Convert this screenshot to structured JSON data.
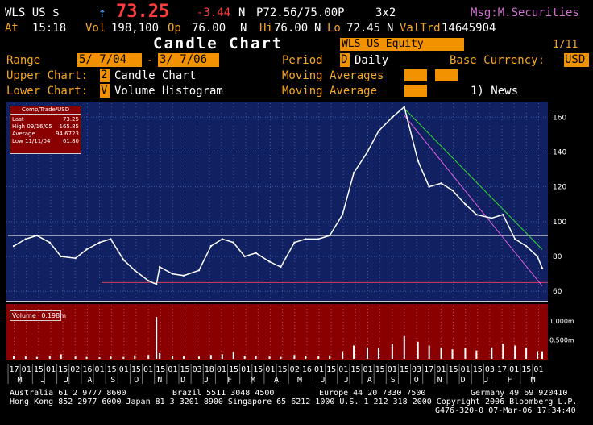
{
  "header": {
    "ticker": "WLS US $",
    "arrow": "⇡",
    "price": "73.25",
    "change": "-3.44",
    "n1": "N",
    "bid_ask": "P72.56/75.00P",
    "size": "3x2",
    "msg": "Msg:M.Securities",
    "at_label": "At",
    "time": "15:18",
    "vol_label": "Vol",
    "vol": "198,100",
    "op_label": "Op",
    "open": "76.00",
    "n2": "N",
    "hi_label": "Hi",
    "high": "76.00",
    "n3": "N",
    "lo_label": "Lo",
    "low": "72.45",
    "n4": "N",
    "valtrd_label": "ValTrd",
    "valtrd": "14645904"
  },
  "title": {
    "text": "Candle Chart",
    "security": "WLS  US Equity",
    "page": "1/11"
  },
  "settings": {
    "range_label": "Range",
    "range_start": "5/ 7/04",
    "range_dash": "-",
    "range_end": "3/ 7/06",
    "period_label": "Period",
    "period_code": "D",
    "period_value": "Daily",
    "currency_label": "Base Currency:",
    "currency_value": "USD",
    "upper_label": "Upper Chart:",
    "upper_code": "2",
    "upper_value": "Candle Chart",
    "ma1_label": "Moving Averages",
    "lower_label": "Lower Chart:",
    "lower_code": "V",
    "lower_value": "Volume Histogram",
    "ma2_label": "Moving Average",
    "news_label": "1) News"
  },
  "info_box": {
    "title": "Comp/Trade/USD",
    "rows": [
      {
        "label": "Last",
        "value": "73.25"
      },
      {
        "label": "High  09/16/05",
        "value": "165.85"
      },
      {
        "label": "Average",
        "value": "94.6723"
      },
      {
        "label": "Low   11/11/04",
        "value": "61.80"
      }
    ]
  },
  "volume_box": {
    "label": "Volume",
    "value": "0.198m"
  },
  "chart_data": {
    "type": "line",
    "title": "Candle Chart",
    "series": [
      {
        "name": "WLS US Equity",
        "x": [
          "2004-05-17",
          "2004-06-01",
          "2004-06-15",
          "2004-07-01",
          "2004-07-15",
          "2004-08-02",
          "2004-08-16",
          "2004-09-01",
          "2004-09-15",
          "2004-10-01",
          "2004-10-15",
          "2004-11-01",
          "2004-11-11",
          "2004-11-15",
          "2004-12-01",
          "2004-12-15",
          "2005-01-03",
          "2005-01-18",
          "2005-02-01",
          "2005-02-15",
          "2005-03-01",
          "2005-03-15",
          "2005-04-01",
          "2005-04-15",
          "2005-05-02",
          "2005-05-16",
          "2005-06-01",
          "2005-06-15",
          "2005-07-01",
          "2005-07-15",
          "2005-08-01",
          "2005-08-15",
          "2005-09-01",
          "2005-09-16",
          "2005-10-03",
          "2005-10-17",
          "2005-11-01",
          "2005-11-15",
          "2005-12-01",
          "2005-12-15",
          "2006-01-03",
          "2006-01-17",
          "2006-02-01",
          "2006-02-15",
          "2006-03-01",
          "2006-03-07"
        ],
        "y": [
          86,
          90,
          92,
          88,
          80,
          79,
          84,
          88,
          90,
          78,
          72,
          66,
          64,
          74,
          70,
          69,
          72,
          86,
          90,
          88,
          80,
          82,
          77,
          74,
          88,
          90,
          90,
          92,
          104,
          128,
          140,
          152,
          160,
          165.85,
          135,
          120,
          122,
          118,
          110,
          104,
          102,
          104,
          90,
          86,
          80,
          73.25
        ]
      }
    ],
    "volume": {
      "x": [
        "2004-05-17",
        "2004-06-01",
        "2004-06-15",
        "2004-07-01",
        "2004-07-15",
        "2004-08-02",
        "2004-08-16",
        "2004-09-01",
        "2004-09-15",
        "2004-10-01",
        "2004-10-15",
        "2004-11-01",
        "2004-11-11",
        "2004-11-15",
        "2004-12-01",
        "2004-12-15",
        "2005-01-03",
        "2005-01-18",
        "2005-02-01",
        "2005-02-15",
        "2005-03-01",
        "2005-03-15",
        "2005-04-01",
        "2005-04-15",
        "2005-05-02",
        "2005-05-16",
        "2005-06-01",
        "2005-06-15",
        "2005-07-01",
        "2005-07-15",
        "2005-08-01",
        "2005-08-15",
        "2005-09-01",
        "2005-09-16",
        "2005-10-03",
        "2005-10-17",
        "2005-11-01",
        "2005-11-15",
        "2005-12-01",
        "2005-12-15",
        "2006-01-03",
        "2006-01-17",
        "2006-02-01",
        "2006-02-15",
        "2006-03-01",
        "2006-03-07"
      ],
      "values": [
        0.08,
        0.06,
        0.05,
        0.07,
        0.12,
        0.06,
        0.05,
        0.04,
        0.06,
        0.05,
        0.09,
        0.1,
        1.1,
        0.15,
        0.08,
        0.07,
        0.06,
        0.1,
        0.12,
        0.18,
        0.08,
        0.07,
        0.06,
        0.05,
        0.1,
        0.08,
        0.07,
        0.09,
        0.2,
        0.35,
        0.3,
        0.28,
        0.4,
        0.6,
        0.45,
        0.35,
        0.3,
        0.25,
        0.28,
        0.22,
        0.3,
        0.4,
        0.35,
        0.3,
        0.2,
        0.198
      ],
      "ylim": [
        0,
        1.4
      ]
    },
    "ylim": [
      55,
      168
    ],
    "yticks": [
      "160",
      "140",
      "120",
      "100",
      "80",
      "60"
    ],
    "vol_ticks": [
      "1.000m",
      "0.500m"
    ],
    "hlines": [
      92,
      65
    ],
    "trendlines": [
      {
        "color": "#2fdf2f",
        "from": [
          "2005-09-16",
          165
        ],
        "to": [
          "2006-03-07",
          84
        ]
      },
      {
        "color": "#e060e0",
        "from": [
          "2005-09-16",
          161
        ],
        "to": [
          "2006-03-07",
          63
        ]
      }
    ],
    "x_day_ticks": [
      "17",
      "01",
      "15",
      "01",
      "15",
      "02",
      "16",
      "01",
      "15",
      "01",
      "15",
      "01",
      "15",
      "01",
      "15",
      "03",
      "18",
      "01",
      "15",
      "01",
      "15",
      "01",
      "15",
      "02",
      "16",
      "01",
      "15",
      "01",
      "15",
      "01",
      "15",
      "01",
      "15",
      "03",
      "17",
      "01",
      "15",
      "01",
      "15",
      "03",
      "17",
      "01",
      "15",
      "01"
    ],
    "x_month_ticks": [
      "M",
      "J",
      "J",
      "A",
      "S",
      "O",
      "N",
      "D",
      "J",
      "F",
      "M",
      "A",
      "M",
      "J",
      "J",
      "A",
      "S",
      "O",
      "N",
      "D",
      "J",
      "F",
      "M"
    ]
  },
  "footer": {
    "line1a": "Australia 61 2 9777 8600",
    "line1b": "Brazil 5511 3048 4500",
    "line1c": "Europe 44 20 7330 7500",
    "line1d": "Germany 49 69 920410",
    "line2": "Hong Kong 852 2977 6000 Japan 81 3 3201 8900 Singapore 65 6212 1000 U.S. 1 212 318 2000 Copyright 2006 Bloomberg L.P.",
    "line3": "G476-320-0 07-Mar-06 17:34:40"
  },
  "colors": {
    "plot_bg": "#102060",
    "volume_bg": "#8a0000",
    "accent": "#f39200",
    "price_red": "#ff3b3b"
  }
}
